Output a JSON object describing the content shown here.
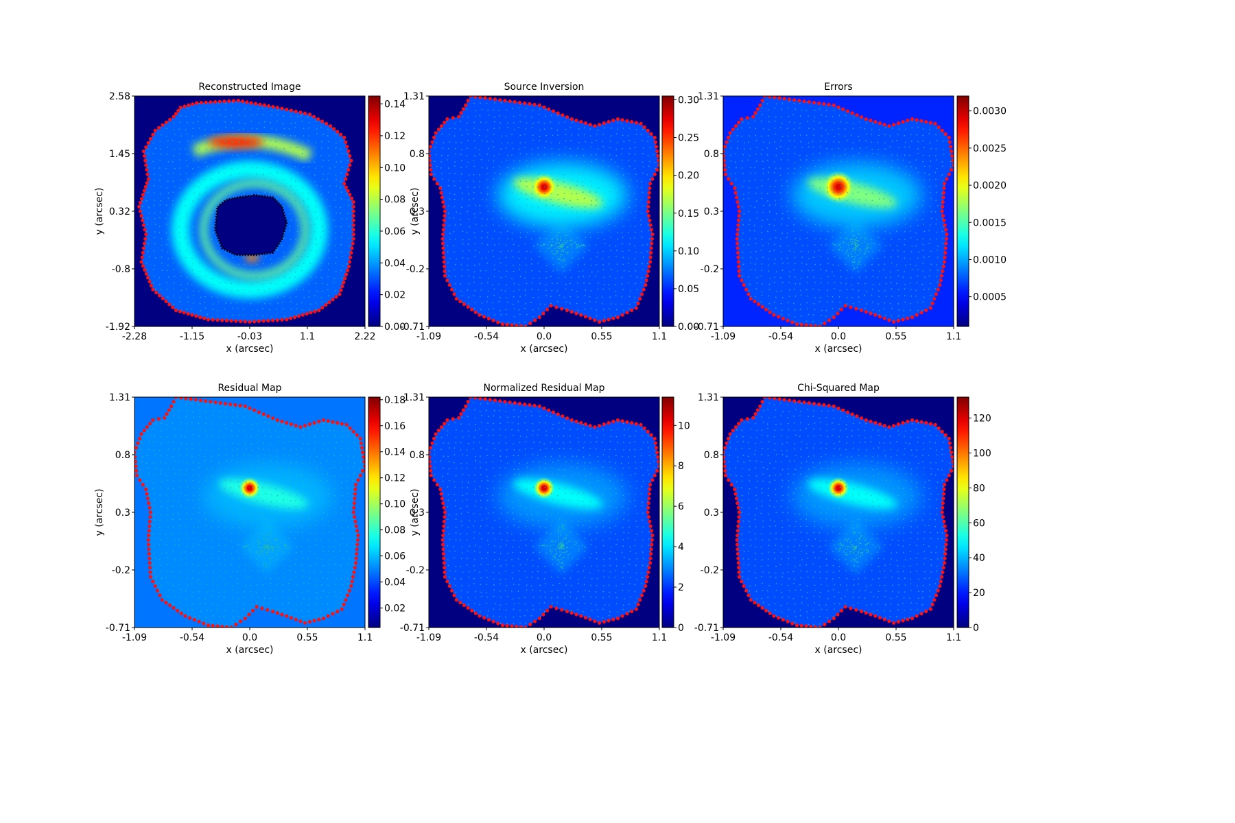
{
  "figure": {
    "colors": {
      "background": "#000080",
      "outline_points": "#ff1010",
      "grid_points": "#20b6b6",
      "inner_border": "#000000"
    },
    "colormap": "jet",
    "panels": [
      {
        "id": "reconstructed-image",
        "title": "Reconstructed Image",
        "xlabel": "x (arcsec)",
        "ylabel": "y (arcsec)",
        "xticks": [
          "-2.28",
          "-1.15",
          "-0.03",
          "1.1",
          "2.22"
        ],
        "yticks": [
          "2.58",
          "1.45",
          "0.32",
          "-0.8",
          "-1.92"
        ],
        "colorbar": {
          "ticks": [
            "0.14",
            "0.12",
            "0.10",
            "0.08",
            "0.06",
            "0.04",
            "0.02",
            "0.00"
          ],
          "min": 0.0,
          "max": 0.145
        }
      },
      {
        "id": "source-inversion",
        "title": "Source Inversion",
        "xlabel": "x (arcsec)",
        "ylabel": "y (arcsec)",
        "xticks": [
          "-1.09",
          "-0.54",
          "0.0",
          "0.55",
          "1.1"
        ],
        "yticks": [
          "1.31",
          "0.8",
          "0.3",
          "-0.2",
          "-0.71"
        ],
        "colorbar": {
          "ticks": [
            "0.30",
            "0.25",
            "0.20",
            "0.15",
            "0.10",
            "0.05",
            "0.00"
          ],
          "min": 0.0,
          "max": 0.305
        }
      },
      {
        "id": "errors",
        "title": "Errors",
        "xlabel": "x (arcsec)",
        "ylabel": "",
        "xticks": [
          "-1.09",
          "-0.54",
          "0.0",
          "0.55",
          "1.1"
        ],
        "yticks": [
          "1.31",
          "0.8",
          "0.3",
          "-0.2",
          "-0.71"
        ],
        "colorbar": {
          "ticks": [
            "0.0030",
            "0.0025",
            "0.0020",
            "0.0015",
            "0.0010",
            "0.0005"
          ],
          "min": 0.0001,
          "max": 0.0032
        }
      },
      {
        "id": "residual-map",
        "title": "Residual Map",
        "xlabel": "x (arcsec)",
        "ylabel": "y (arcsec)",
        "xticks": [
          "-1.09",
          "-0.54",
          "0.0",
          "0.55",
          "1.1"
        ],
        "yticks": [
          "1.31",
          "0.8",
          "0.3",
          "-0.2",
          "-0.71"
        ],
        "colorbar": {
          "ticks": [
            "0.18",
            "0.16",
            "0.14",
            "0.12",
            "0.10",
            "0.08",
            "0.06",
            "0.04",
            "0.02"
          ],
          "min": 0.005,
          "max": 0.182
        }
      },
      {
        "id": "normalized-residual-map",
        "title": "Normalized Residual Map",
        "xlabel": "x (arcsec)",
        "ylabel": "y (arcsec)",
        "xticks": [
          "-1.09",
          "-0.54",
          "0.0",
          "0.55",
          "1.1"
        ],
        "yticks": [
          "1.31",
          "0.8",
          "0.3",
          "-0.2",
          "-0.71"
        ],
        "colorbar": {
          "ticks": [
            "10",
            "8",
            "6",
            "4",
            "2",
            "0"
          ],
          "min": 0,
          "max": 11.4
        }
      },
      {
        "id": "chi-squared-map",
        "title": "Chi-Squared Map",
        "xlabel": "x (arcsec)",
        "ylabel": "",
        "xticks": [
          "-1.09",
          "-0.54",
          "0.0",
          "0.55",
          "1.1"
        ],
        "yticks": [
          "1.31",
          "0.8",
          "0.3",
          "-0.2",
          "-0.71"
        ],
        "colorbar": {
          "ticks": [
            "120",
            "100",
            "80",
            "60",
            "40",
            "20",
            "0"
          ],
          "min": 0,
          "max": 132
        }
      }
    ]
  },
  "chart_data": [
    {
      "type": "heatmap",
      "title": "Reconstructed Image",
      "xlabel": "x (arcsec)",
      "ylabel": "y (arcsec)",
      "xlim": [
        -2.28,
        2.22
      ],
      "ylim": [
        -1.92,
        2.58
      ],
      "colorbar_range": [
        0.0,
        0.145
      ],
      "peak": {
        "x": -0.3,
        "y": 1.75,
        "value": 0.145
      }
    },
    {
      "type": "heatmap",
      "title": "Source Inversion",
      "xlabel": "x (arcsec)",
      "ylabel": "y (arcsec)",
      "xlim": [
        -1.09,
        1.1
      ],
      "ylim": [
        -0.71,
        1.31
      ],
      "colorbar_range": [
        0.0,
        0.305
      ],
      "peak": {
        "x": 0.0,
        "y": 0.55,
        "value": 0.3
      }
    },
    {
      "type": "heatmap",
      "title": "Errors",
      "xlabel": "x (arcsec)",
      "ylabel": "",
      "xlim": [
        -1.09,
        1.1
      ],
      "ylim": [
        -0.71,
        1.31
      ],
      "colorbar_range": [
        0.0001,
        0.0032
      ],
      "peak": {
        "x": 0.0,
        "y": 0.52,
        "value": 0.0031
      }
    },
    {
      "type": "heatmap",
      "title": "Residual Map",
      "xlabel": "x (arcsec)",
      "ylabel": "y (arcsec)",
      "xlim": [
        -1.09,
        1.1
      ],
      "ylim": [
        -0.71,
        1.31
      ],
      "colorbar_range": [
        0.005,
        0.182
      ],
      "peak": {
        "x": 0.0,
        "y": 0.52,
        "value": 0.18
      }
    },
    {
      "type": "heatmap",
      "title": "Normalized Residual Map",
      "xlabel": "x (arcsec)",
      "ylabel": "y (arcsec)",
      "xlim": [
        -1.09,
        1.1
      ],
      "ylim": [
        -0.71,
        1.31
      ],
      "colorbar_range": [
        0,
        11.4
      ],
      "peak": {
        "x": 0.0,
        "y": 0.52,
        "value": 11.0
      }
    },
    {
      "type": "heatmap",
      "title": "Chi-Squared Map",
      "xlabel": "x (arcsec)",
      "ylabel": "",
      "xlim": [
        -1.09,
        1.1
      ],
      "ylim": [
        -0.71,
        1.31
      ],
      "colorbar_range": [
        0,
        132
      ],
      "peak": {
        "x": 0.0,
        "y": 0.52,
        "value": 130
      }
    }
  ]
}
